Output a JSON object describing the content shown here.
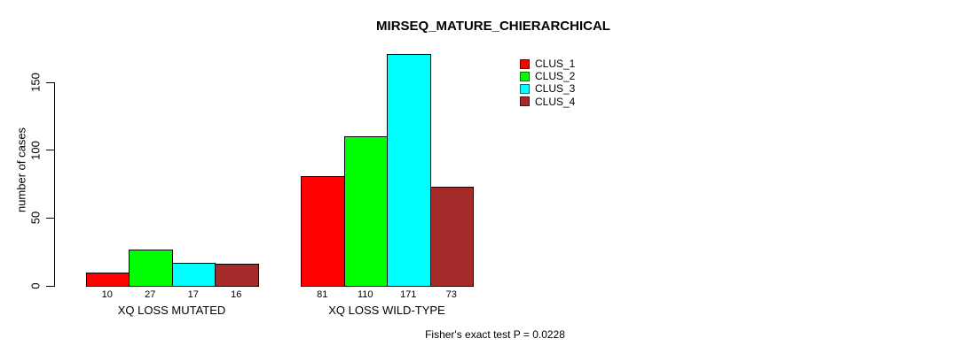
{
  "title": "MIRSEQ_MATURE_CHIERARCHICAL",
  "footer": "Fisher's exact test P = 0.0228",
  "chart_data": {
    "type": "bar",
    "title": "MIRSEQ_MATURE_CHIERARCHICAL",
    "xlabel": "",
    "ylabel": "number of cases",
    "categories": [
      "XQ LOSS MUTATED",
      "XQ LOSS WILD-TYPE"
    ],
    "series": [
      {
        "name": "CLUS_1",
        "color": "#FF0000",
        "values": [
          10,
          81
        ]
      },
      {
        "name": "CLUS_2",
        "color": "#00FF00",
        "values": [
          27,
          110
        ]
      },
      {
        "name": "CLUS_3",
        "color": "#00FFFF",
        "values": [
          17,
          171
        ]
      },
      {
        "name": "CLUS_4",
        "color": "#A52A2A",
        "values": [
          16,
          73
        ]
      }
    ],
    "yticks": [
      0,
      50,
      100,
      150
    ],
    "ylim": [
      0,
      172
    ],
    "grid": false,
    "legend_position": "top-right",
    "bar_value_labels_shown": true,
    "annotation": "Fisher's exact test P = 0.0228",
    "axis_color": "#000000",
    "background_color": "#FFFFFF"
  }
}
